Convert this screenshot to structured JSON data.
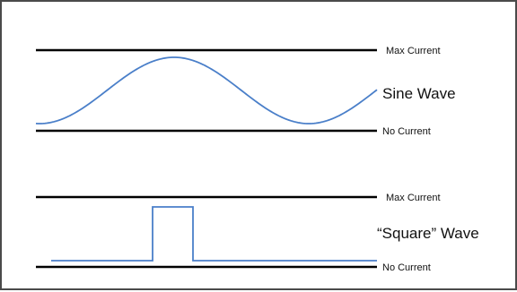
{
  "sine_panel": {
    "max_label": "Max Current",
    "min_label": "No Current",
    "wave_label": "Sine Wave"
  },
  "square_panel": {
    "max_label": "Max Current",
    "min_label": "No Current",
    "wave_label": "“Square” Wave"
  },
  "colors": {
    "wave": "#4a7fc9",
    "baseline": "#000000",
    "frame": "#4a4a4a"
  }
}
